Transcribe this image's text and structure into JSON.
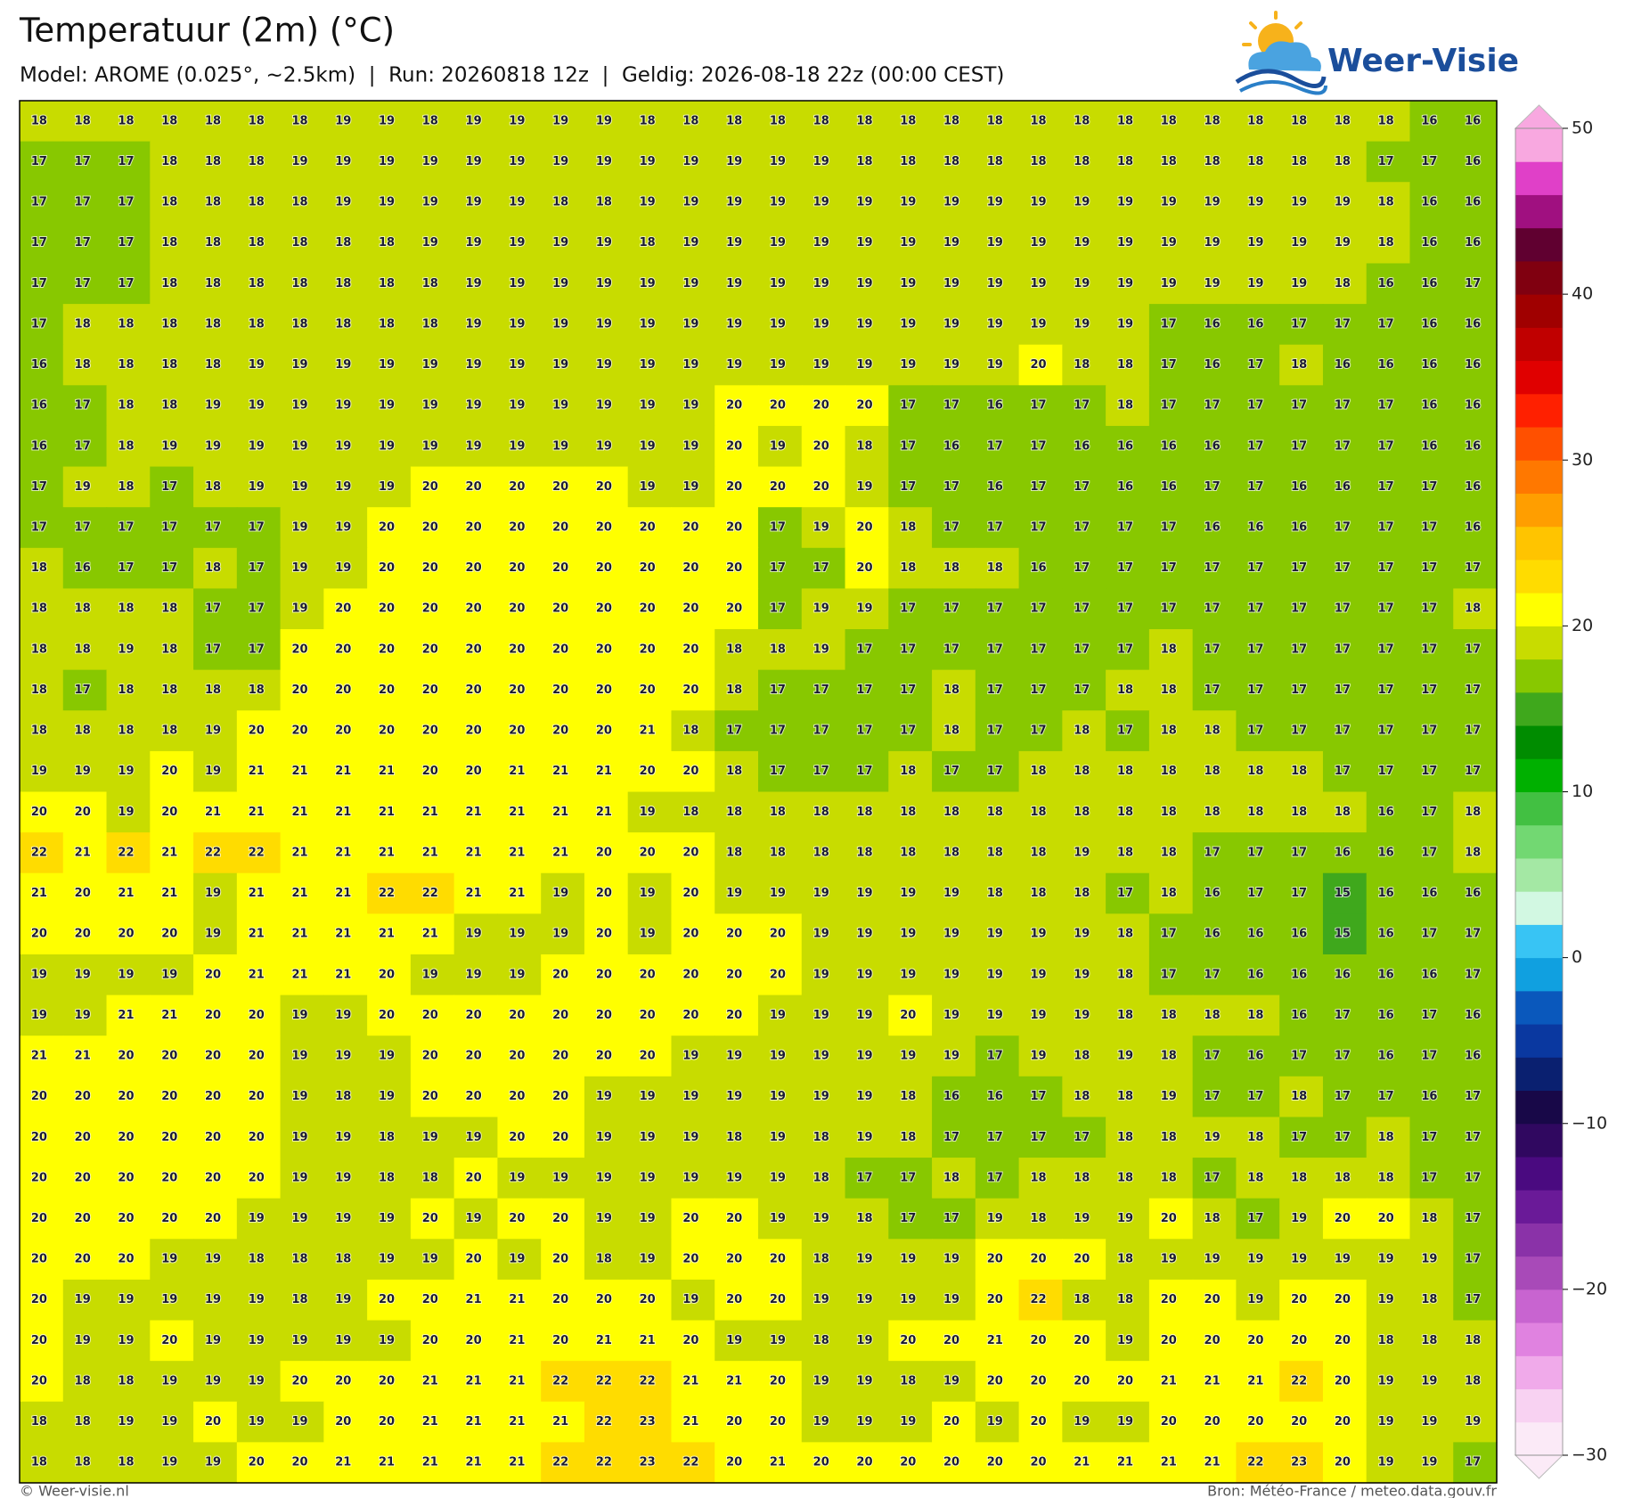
{
  "header": {
    "title": "Temperatuur (2m) (°C)",
    "subtitle": "Model: AROME (0.025°, ~2.5km)  |  Run: 20260818 12z  |  Geldig: 2026-08-18 22z (00:00 CEST)",
    "logo": "Weer-Visie"
  },
  "grid": {
    "rows": [
      [
        18,
        18,
        18,
        18,
        18,
        18,
        18,
        19,
        19,
        18,
        19,
        19,
        19,
        19,
        18,
        18,
        18,
        18,
        18,
        18,
        18,
        18,
        18,
        18,
        18,
        18,
        18,
        18,
        18,
        18,
        18,
        18,
        16,
        16
      ],
      [
        17,
        17,
        17,
        18,
        18,
        18,
        19,
        19,
        19,
        19,
        19,
        19,
        19,
        19,
        19,
        19,
        19,
        19,
        19,
        18,
        18,
        18,
        18,
        18,
        18,
        18,
        18,
        18,
        18,
        18,
        18,
        17,
        17,
        16
      ],
      [
        17,
        17,
        17,
        18,
        18,
        18,
        18,
        19,
        19,
        19,
        19,
        19,
        18,
        18,
        19,
        19,
        19,
        19,
        19,
        19,
        19,
        19,
        19,
        19,
        19,
        19,
        19,
        19,
        19,
        19,
        19,
        18,
        16,
        16
      ],
      [
        17,
        17,
        17,
        18,
        18,
        18,
        18,
        18,
        18,
        19,
        19,
        19,
        19,
        19,
        18,
        19,
        19,
        19,
        19,
        19,
        19,
        19,
        19,
        19,
        19,
        19,
        19,
        19,
        19,
        19,
        19,
        18,
        16,
        16
      ],
      [
        17,
        17,
        17,
        18,
        18,
        18,
        18,
        18,
        18,
        18,
        19,
        19,
        19,
        19,
        19,
        19,
        19,
        19,
        19,
        19,
        19,
        19,
        19,
        19,
        19,
        19,
        19,
        19,
        19,
        19,
        18,
        16,
        16,
        17
      ],
      [
        17,
        18,
        18,
        18,
        18,
        18,
        18,
        18,
        18,
        18,
        19,
        19,
        19,
        19,
        19,
        19,
        19,
        19,
        19,
        19,
        19,
        19,
        19,
        19,
        19,
        19,
        17,
        16,
        16,
        17,
        17,
        17,
        16,
        16
      ],
      [
        16,
        18,
        18,
        18,
        18,
        19,
        19,
        19,
        19,
        19,
        19,
        19,
        19,
        19,
        19,
        19,
        19,
        19,
        19,
        19,
        19,
        19,
        19,
        20,
        18,
        18,
        17,
        16,
        17,
        18,
        16,
        16,
        16,
        16
      ],
      [
        16,
        17,
        18,
        18,
        19,
        19,
        19,
        19,
        19,
        19,
        19,
        19,
        19,
        19,
        19,
        19,
        20,
        20,
        20,
        20,
        17,
        17,
        16,
        17,
        17,
        18,
        17,
        17,
        17,
        17,
        17,
        17,
        16,
        16
      ],
      [
        16,
        17,
        18,
        19,
        19,
        19,
        19,
        19,
        19,
        19,
        19,
        19,
        19,
        19,
        19,
        19,
        20,
        19,
        20,
        18,
        17,
        16,
        17,
        17,
        16,
        16,
        16,
        16,
        17,
        17,
        17,
        17,
        16,
        16
      ],
      [
        17,
        19,
        18,
        17,
        18,
        19,
        19,
        19,
        19,
        20,
        20,
        20,
        20,
        20,
        19,
        19,
        20,
        20,
        20,
        19,
        17,
        17,
        16,
        17,
        17,
        16,
        16,
        17,
        17,
        16,
        16,
        17,
        17,
        16
      ],
      [
        17,
        17,
        17,
        17,
        17,
        17,
        19,
        19,
        20,
        20,
        20,
        20,
        20,
        20,
        20,
        20,
        20,
        17,
        19,
        20,
        18,
        17,
        17,
        17,
        17,
        17,
        17,
        16,
        16,
        16,
        17,
        17,
        17,
        16
      ],
      [
        18,
        16,
        17,
        17,
        18,
        17,
        19,
        19,
        20,
        20,
        20,
        20,
        20,
        20,
        20,
        20,
        20,
        17,
        17,
        20,
        18,
        18,
        18,
        16,
        17,
        17,
        17,
        17,
        17,
        17,
        17,
        17,
        17,
        17
      ],
      [
        18,
        18,
        18,
        18,
        17,
        17,
        19,
        20,
        20,
        20,
        20,
        20,
        20,
        20,
        20,
        20,
        20,
        17,
        19,
        19,
        17,
        17,
        17,
        17,
        17,
        17,
        17,
        17,
        17,
        17,
        17,
        17,
        17,
        18
      ],
      [
        18,
        18,
        19,
        18,
        17,
        17,
        20,
        20,
        20,
        20,
        20,
        20,
        20,
        20,
        20,
        20,
        18,
        18,
        19,
        17,
        17,
        17,
        17,
        17,
        17,
        17,
        18,
        17,
        17,
        17,
        17,
        17,
        17,
        17
      ],
      [
        18,
        17,
        18,
        18,
        18,
        18,
        20,
        20,
        20,
        20,
        20,
        20,
        20,
        20,
        20,
        20,
        18,
        17,
        17,
        17,
        17,
        18,
        17,
        17,
        17,
        18,
        18,
        17,
        17,
        17,
        17,
        17,
        17,
        17
      ],
      [
        18,
        18,
        18,
        18,
        19,
        20,
        20,
        20,
        20,
        20,
        20,
        20,
        20,
        20,
        21,
        18,
        17,
        17,
        17,
        17,
        17,
        18,
        17,
        17,
        18,
        17,
        18,
        18,
        17,
        17,
        17,
        17,
        17,
        17
      ],
      [
        19,
        19,
        19,
        20,
        19,
        21,
        21,
        21,
        21,
        20,
        20,
        21,
        21,
        21,
        20,
        20,
        18,
        17,
        17,
        17,
        18,
        17,
        17,
        18,
        18,
        18,
        18,
        18,
        18,
        18,
        17,
        17,
        17,
        17
      ],
      [
        20,
        20,
        19,
        20,
        21,
        21,
        21,
        21,
        21,
        21,
        21,
        21,
        21,
        21,
        19,
        18,
        18,
        18,
        18,
        18,
        18,
        18,
        18,
        18,
        18,
        18,
        18,
        18,
        18,
        18,
        18,
        16,
        17,
        18
      ],
      [
        22,
        21,
        22,
        21,
        22,
        22,
        21,
        21,
        21,
        21,
        21,
        21,
        21,
        20,
        20,
        20,
        18,
        18,
        18,
        18,
        18,
        18,
        18,
        18,
        19,
        18,
        18,
        17,
        17,
        17,
        16,
        16,
        17,
        18
      ],
      [
        21,
        20,
        21,
        21,
        19,
        21,
        21,
        21,
        22,
        22,
        21,
        21,
        19,
        20,
        19,
        20,
        19,
        19,
        19,
        19,
        19,
        19,
        18,
        18,
        18,
        17,
        18,
        16,
        17,
        17,
        15,
        16,
        16,
        16
      ],
      [
        20,
        20,
        20,
        20,
        19,
        21,
        21,
        21,
        21,
        21,
        19,
        19,
        19,
        20,
        19,
        20,
        20,
        20,
        19,
        19,
        19,
        19,
        19,
        19,
        19,
        18,
        17,
        16,
        16,
        16,
        15,
        16,
        17,
        17
      ],
      [
        19,
        19,
        19,
        19,
        20,
        21,
        21,
        21,
        20,
        19,
        19,
        19,
        20,
        20,
        20,
        20,
        20,
        20,
        19,
        19,
        19,
        19,
        19,
        19,
        19,
        18,
        17,
        17,
        16,
        16,
        16,
        16,
        16,
        17
      ],
      [
        19,
        19,
        21,
        21,
        20,
        20,
        19,
        19,
        20,
        20,
        20,
        20,
        20,
        20,
        20,
        20,
        20,
        19,
        19,
        19,
        20,
        19,
        19,
        19,
        19,
        18,
        18,
        18,
        18,
        16,
        17,
        16,
        17,
        16
      ],
      [
        21,
        21,
        20,
        20,
        20,
        20,
        19,
        19,
        19,
        20,
        20,
        20,
        20,
        20,
        20,
        19,
        19,
        19,
        19,
        19,
        19,
        19,
        17,
        19,
        18,
        19,
        18,
        17,
        16,
        17,
        17,
        16,
        17,
        16
      ],
      [
        20,
        20,
        20,
        20,
        20,
        20,
        19,
        18,
        19,
        20,
        20,
        20,
        20,
        19,
        19,
        19,
        19,
        19,
        19,
        19,
        18,
        16,
        16,
        17,
        18,
        18,
        19,
        17,
        17,
        18,
        17,
        17,
        16,
        17
      ],
      [
        20,
        20,
        20,
        20,
        20,
        20,
        19,
        19,
        18,
        19,
        19,
        20,
        20,
        19,
        19,
        19,
        18,
        19,
        18,
        19,
        18,
        17,
        17,
        17,
        17,
        18,
        18,
        19,
        18,
        17,
        17,
        18,
        17,
        17
      ],
      [
        20,
        20,
        20,
        20,
        20,
        20,
        19,
        19,
        18,
        18,
        20,
        19,
        19,
        19,
        19,
        19,
        19,
        19,
        18,
        17,
        17,
        18,
        17,
        18,
        18,
        18,
        18,
        17,
        18,
        18,
        18,
        18,
        17,
        17
      ],
      [
        20,
        20,
        20,
        20,
        20,
        19,
        19,
        19,
        19,
        20,
        19,
        20,
        20,
        19,
        19,
        20,
        20,
        19,
        19,
        18,
        17,
        17,
        19,
        18,
        19,
        19,
        20,
        18,
        17,
        19,
        20,
        20,
        18,
        17
      ],
      [
        20,
        20,
        20,
        19,
        19,
        18,
        18,
        18,
        19,
        19,
        20,
        19,
        20,
        18,
        19,
        20,
        20,
        20,
        18,
        19,
        19,
        19,
        20,
        20,
        20,
        18,
        19,
        19,
        19,
        19,
        19,
        19,
        19,
        17
      ],
      [
        20,
        19,
        19,
        19,
        19,
        19,
        18,
        19,
        20,
        20,
        21,
        21,
        20,
        20,
        20,
        19,
        20,
        20,
        19,
        19,
        19,
        19,
        20,
        22,
        18,
        18,
        20,
        20,
        19,
        20,
        20,
        19,
        18,
        17
      ],
      [
        20,
        19,
        19,
        20,
        19,
        19,
        19,
        19,
        19,
        20,
        20,
        21,
        20,
        21,
        21,
        20,
        19,
        19,
        18,
        19,
        20,
        20,
        21,
        20,
        20,
        19,
        20,
        20,
        20,
        20,
        20,
        18,
        18,
        18
      ],
      [
        20,
        18,
        18,
        19,
        19,
        19,
        20,
        20,
        20,
        21,
        21,
        21,
        22,
        22,
        22,
        21,
        21,
        20,
        19,
        19,
        18,
        19,
        20,
        20,
        20,
        20,
        21,
        21,
        21,
        22,
        20,
        19,
        19,
        18
      ],
      [
        18,
        18,
        19,
        19,
        20,
        19,
        19,
        20,
        20,
        21,
        21,
        21,
        21,
        22,
        23,
        21,
        20,
        20,
        19,
        19,
        19,
        20,
        19,
        20,
        19,
        19,
        20,
        20,
        20,
        20,
        20,
        19,
        19,
        19
      ],
      [
        18,
        18,
        18,
        19,
        19,
        20,
        20,
        21,
        21,
        21,
        21,
        21,
        22,
        22,
        23,
        22,
        20,
        21,
        20,
        20,
        20,
        20,
        20,
        20,
        21,
        21,
        21,
        21,
        22,
        23,
        20,
        19,
        19,
        17
      ]
    ]
  },
  "colorbar": {
    "range": [
      -30,
      50
    ],
    "ticks": [
      {
        "value": -30,
        "label": "−30"
      },
      {
        "value": -20,
        "label": "−20"
      },
      {
        "value": -10,
        "label": "−10"
      },
      0,
      10,
      20,
      30,
      40,
      50
    ],
    "colors": [
      "#fbeaf7",
      "#f8d2f2",
      "#f0aaea",
      "#e082e0",
      "#c864d0",
      "#a84ab8",
      "#8a32a8",
      "#6a1a98",
      "#4a0a80",
      "#300860",
      "#180848",
      "#0a2070",
      "#0a38a0",
      "#0a58bc",
      "#10a0e0",
      "#38c4f4",
      "#d2f8e2",
      "#a4e8a4",
      "#72d872",
      "#42c042",
      "#00b000",
      "#008c00",
      "#3fa81c",
      "#88c800",
      "#c8dc00",
      "#ffff00",
      "#ffdc00",
      "#ffc400",
      "#ff9e00",
      "#ff7800",
      "#ff5000",
      "#ff2000",
      "#e00000",
      "#c00000",
      "#a00000",
      "#800010",
      "#600030",
      "#a01080",
      "#e040c8",
      "#f8a8e0"
    ]
  },
  "footer": {
    "left": "© Weer-visie.nl",
    "right": "Bron: Météo-France / meteo.data.gouv.fr"
  }
}
